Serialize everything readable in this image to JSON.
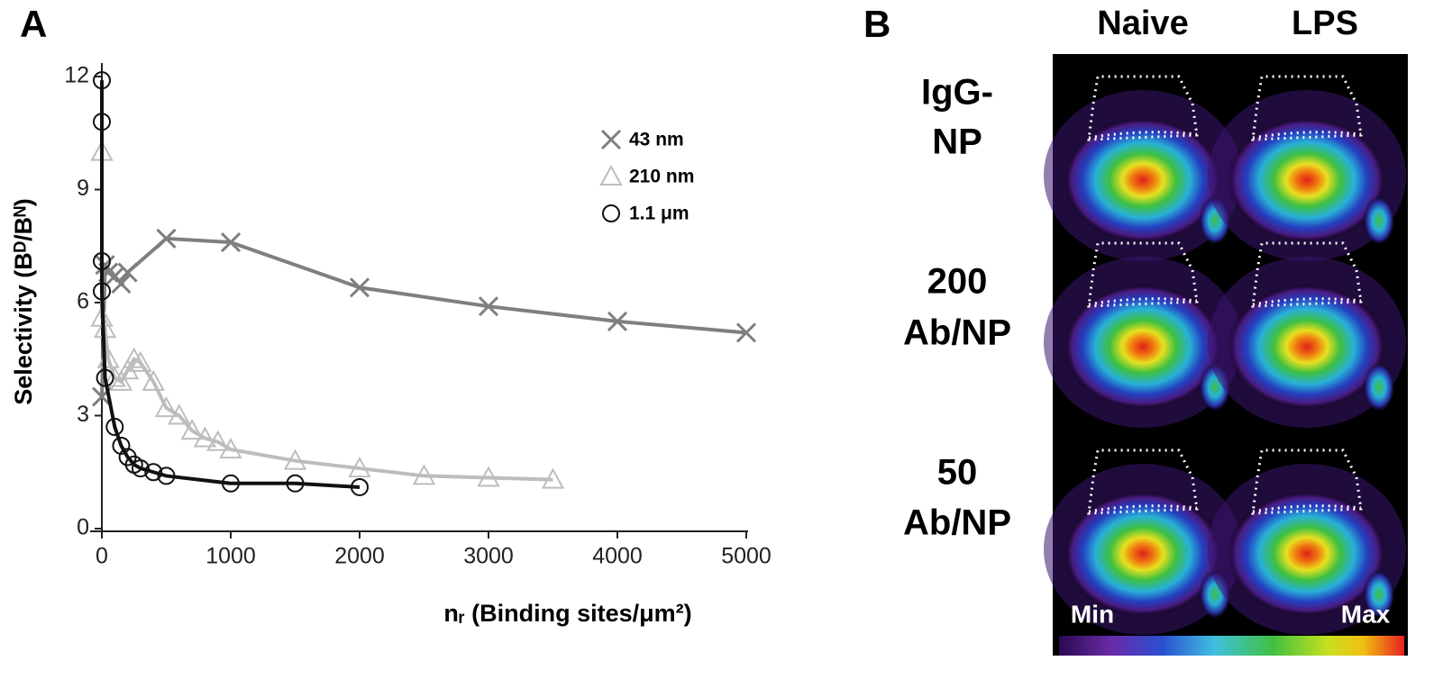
{
  "panel_labels": [
    "A",
    "B"
  ],
  "chart_data": {
    "type": "line",
    "x_label": "nᵣ (Binding sites/μm²)",
    "y_label": "Selectivity (Bᴰ/Bᴺ)",
    "xlim": [
      0,
      5000
    ],
    "xticks": [
      0,
      1000,
      2000,
      3000,
      4000,
      5000
    ],
    "ylim": [
      0,
      12
    ],
    "yticks": [
      0,
      3,
      6,
      9,
      12
    ],
    "grid": false,
    "legend": "upper right",
    "series": [
      {
        "name": "43 nm",
        "color": "#7f7f7f",
        "marker": "x",
        "x": [
          0,
          25,
          50,
          100,
          150,
          200,
          500,
          1000,
          2000,
          3000,
          4000,
          5000
        ],
        "values": [
          3.5,
          7.0,
          6.8,
          6.7,
          6.5,
          6.8,
          7.7,
          7.6,
          6.4,
          5.9,
          5.5,
          5.2
        ]
      },
      {
        "name": "210 nm",
        "color": "#bdbdbd",
        "marker": "triangle",
        "x": [
          0,
          0,
          25,
          50,
          100,
          150,
          200,
          250,
          300,
          400,
          500,
          600,
          700,
          800,
          900,
          1000,
          1500,
          2000,
          2500,
          3000,
          3500
        ],
        "values": [
          10.0,
          5.6,
          5.3,
          4.5,
          4.0,
          3.9,
          4.2,
          4.5,
          4.4,
          3.9,
          3.2,
          3.0,
          2.6,
          2.4,
          2.3,
          2.1,
          1.8,
          1.6,
          1.4,
          1.35,
          1.3
        ]
      },
      {
        "name": "1.1 μm",
        "color": "#111111",
        "marker": "circle",
        "x": [
          0,
          0,
          0,
          0,
          25,
          100,
          150,
          200,
          250,
          300,
          400,
          500,
          1000,
          1500,
          2000
        ],
        "values": [
          11.9,
          10.8,
          7.1,
          6.3,
          4.0,
          2.7,
          2.2,
          1.9,
          1.7,
          1.6,
          1.5,
          1.4,
          1.2,
          1.2,
          1.1
        ]
      }
    ]
  },
  "image_panel": {
    "columns": [
      "Naive",
      "LPS"
    ],
    "rows": [
      [
        "IgG-",
        "NP"
      ],
      [
        "200",
        "Ab/NP"
      ],
      [
        "50",
        "Ab/NP"
      ]
    ],
    "colorbar": [
      "Min",
      "Max"
    ]
  }
}
